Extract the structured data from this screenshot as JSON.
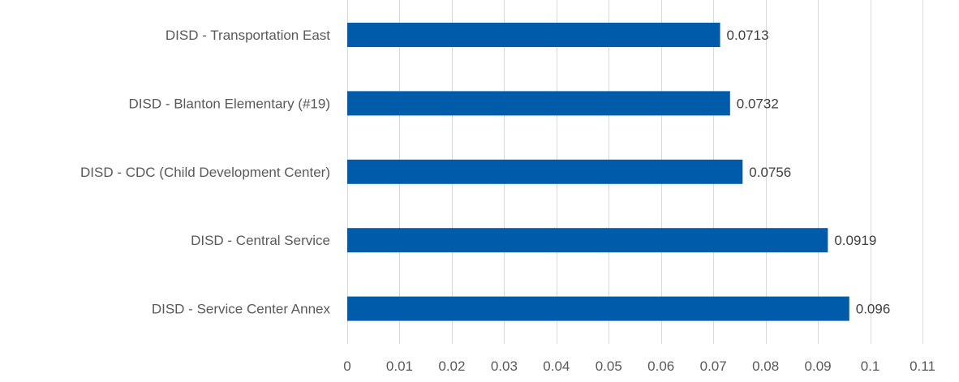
{
  "chart_data": {
    "type": "bar",
    "orientation": "horizontal",
    "categories": [
      "DISD - Transportation East",
      "DISD - Blanton Elementary (#19)",
      "DISD - CDC (Child Development Center)",
      "DISD - Central Service",
      "DISD - Service Center Annex"
    ],
    "values": [
      0.0713,
      0.0732,
      0.0756,
      0.0919,
      0.096
    ],
    "data_labels": [
      "0.0713",
      "0.0732",
      "0.0756",
      "0.0919",
      "0.096"
    ],
    "xlim": [
      0,
      0.11
    ],
    "x_ticks": [
      0,
      0.01,
      0.02,
      0.03,
      0.04,
      0.05,
      0.06,
      0.07,
      0.08,
      0.09,
      0.1,
      0.11
    ],
    "x_tick_labels": [
      "0",
      "0.01",
      "0.02",
      "0.03",
      "0.04",
      "0.05",
      "0.06",
      "0.07",
      "0.08",
      "0.09",
      "0.1",
      "0.11"
    ],
    "title": "",
    "xlabel": "",
    "ylabel": "",
    "grid": "vertical",
    "legend": "none",
    "bar_color": "#005BAA",
    "grid_color": "#D9D9D9"
  }
}
